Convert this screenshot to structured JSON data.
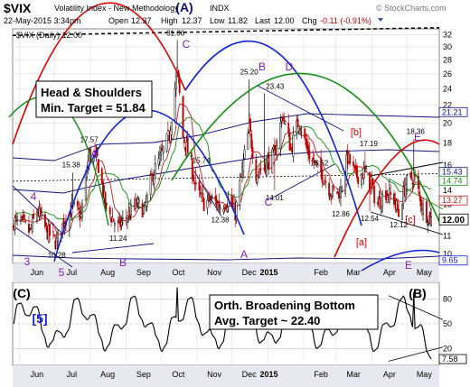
{
  "header": {
    "symbol": "$VIX",
    "name": "Volatility Index - New Methodology",
    "exchange": "INDX",
    "credit": "© StockCharts.com",
    "datetime": "22-May-2015 3:34pm",
    "open_label": "Open",
    "open": "12.37",
    "high_label": "High",
    "high": "12.37",
    "low_label": "Low",
    "low": "11.82",
    "last_label": "Last",
    "last": "12.00",
    "chg_label": "Chg",
    "chg": "-0.11 (-0.91%)",
    "legend": "$VIX (Daily) 12.00"
  },
  "colors": {
    "up": "#000000",
    "down": "#c00000",
    "red_arc": "#e00000",
    "green_arc": "#109010",
    "blue_arc": "#1020e0",
    "purple": "#8020c0",
    "navy": "#101080",
    "osc": "#000000"
  },
  "chart_data": [
    {
      "type": "candlestick",
      "title": "$VIX (Daily) 12.00",
      "x_labels": [
        "Jun",
        "Jul",
        "Aug",
        "Sep",
        "Oct",
        "Nov",
        "Dec",
        "2015",
        "Feb",
        "Mar",
        "Apr",
        "May"
      ],
      "y_ticks": [
        10,
        11,
        12,
        13,
        14,
        16,
        18,
        20,
        22,
        24,
        26,
        28,
        30,
        32
      ],
      "ylim": [
        9.5,
        33
      ],
      "y_scale": "log",
      "last_value_tag": "12.00",
      "price_tags": [
        "21.21",
        "15.43",
        "14.74",
        "13.27",
        "9.65"
      ],
      "key_points": [
        {
          "date": "2014-07-03",
          "label": "10.28"
        },
        {
          "date": "2014-07-17",
          "label": "15.38"
        },
        {
          "date": "2014-07-31",
          "label": "17.57"
        },
        {
          "date": "2014-08-25",
          "label": "11.24"
        },
        {
          "date": "2014-10-15",
          "label": "31.06"
        },
        {
          "date": "2014-10-31",
          "label": "15.74"
        },
        {
          "date": "2014-11-21",
          "label": "12.38"
        },
        {
          "date": "2014-12-16",
          "label": "25.20"
        },
        {
          "date": "2014-12-29",
          "label": "23.43"
        },
        {
          "date": "2015-01-07",
          "label": "14.01"
        },
        {
          "date": "2015-02-13",
          "label": "15.52"
        },
        {
          "date": "2015-03-05",
          "label": "12.86"
        },
        {
          "date": "2015-03-26",
          "label": "17.19"
        },
        {
          "date": "2015-03-30",
          "label": "12.54"
        },
        {
          "date": "2015-04-24",
          "label": "12.12"
        },
        {
          "date": "2015-05-07",
          "label": "18.36"
        }
      ],
      "wave_labels": [
        "(A)",
        "A",
        "B",
        "C",
        "D",
        "E",
        "[b]",
        "[a]",
        "[c]",
        "4",
        "3",
        "5",
        "A",
        "B",
        "C",
        "E"
      ],
      "annotations": [
        {
          "text": "Head & Shoulders\nMin. Target = 51.84"
        }
      ]
    },
    {
      "type": "line",
      "title": "",
      "ylim": [
        0,
        100
      ],
      "y_ticks": [
        20,
        50,
        80
      ],
      "last_value_tag": "7.58",
      "wave_labels": [
        "(C)",
        "[5]",
        "(B)"
      ],
      "annotations": [
        {
          "text": "Orth. Broadening Bottom\nAvg. Target ~ 22.40"
        }
      ]
    }
  ]
}
